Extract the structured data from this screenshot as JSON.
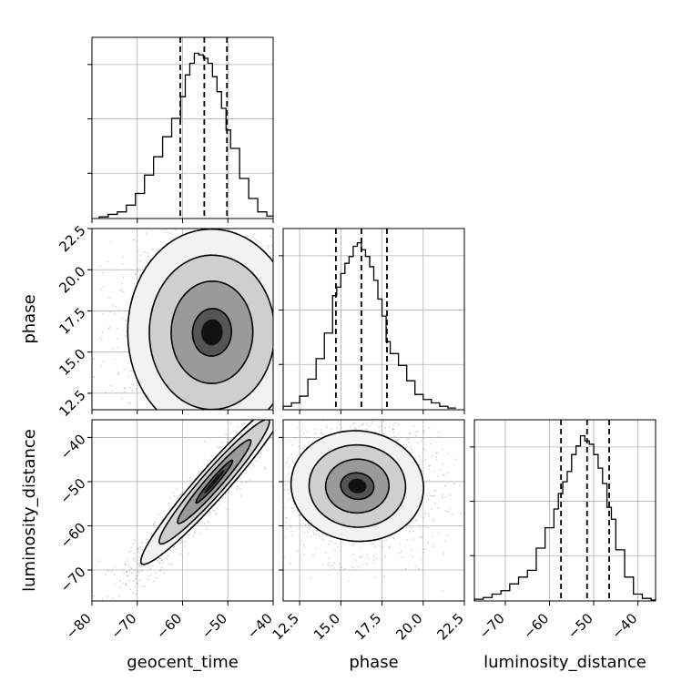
{
  "parameters": [
    "geocent_time",
    "phase",
    "luminosity_distance"
  ],
  "chart_data": {
    "type": "corner",
    "parameters": [
      {
        "name": "geocent_time",
        "axis_label": "geocent_time",
        "range": [
          -80,
          -40
        ],
        "ticks": [
          -80,
          -70,
          -60,
          -50,
          -40
        ],
        "tick_labels": [
          "−80",
          "−70",
          "−60",
          "−50",
          "−40"
        ],
        "quantiles": [
          -60.5,
          -55.2,
          -50.2
        ],
        "hist_bins": [
          -78.4,
          -76.4,
          -74.4,
          -72.4,
          -70.4,
          -68.4,
          -66.4,
          -64.4,
          -62.4,
          -60.4,
          -59.4,
          -58.4,
          -57.4,
          -56.4,
          -55.4,
          -54.4,
          -53.4,
          -52.4,
          -51.4,
          -50.4,
          -49.4,
          -47.4,
          -45.4,
          -43.4,
          -41.4,
          -40.0
        ],
        "hist_counts": [
          0.01,
          0.025,
          0.04,
          0.08,
          0.15,
          0.26,
          0.37,
          0.49,
          0.6,
          0.73,
          0.86,
          0.93,
          0.99,
          0.98,
          0.96,
          0.93,
          0.85,
          0.76,
          0.66,
          0.53,
          0.42,
          0.24,
          0.12,
          0.04,
          0.015
        ],
        "hist_max": 1.02
      },
      {
        "name": "phase",
        "axis_label": "phase",
        "range": [
          11.5,
          22.5
        ],
        "ticks": [
          12.5,
          15.0,
          17.5,
          20.0,
          22.5
        ],
        "tick_labels": [
          "12.5",
          "15.0",
          "17.5",
          "20.0",
          "22.5"
        ],
        "quantiles": [
          14.7,
          16.25,
          17.8
        ],
        "hist_bins": [
          11.5,
          12.0,
          12.5,
          13.0,
          13.5,
          14.0,
          14.5,
          14.75,
          15.0,
          15.25,
          15.5,
          15.75,
          16.0,
          16.25,
          16.5,
          16.75,
          17.0,
          17.25,
          17.5,
          17.75,
          18.0,
          18.5,
          19.0,
          19.5,
          20.0,
          20.5,
          21.0,
          21.5,
          22.0
        ],
        "hist_counts": [
          0.02,
          0.04,
          0.08,
          0.18,
          0.3,
          0.45,
          0.67,
          0.72,
          0.8,
          0.86,
          0.9,
          0.96,
          0.98,
          0.94,
          0.9,
          0.84,
          0.76,
          0.65,
          0.55,
          0.4,
          0.33,
          0.26,
          0.17,
          0.09,
          0.06,
          0.04,
          0.02,
          0.01
        ],
        "hist_max": 1.0
      },
      {
        "name": "luminosity_distance",
        "axis_label": "luminosity_distance",
        "range": [
          -77,
          -36
        ],
        "ticks": [
          -70,
          -60,
          -50,
          -40
        ],
        "tick_labels": [
          "−70",
          "−60",
          "−50",
          "−40"
        ],
        "quantiles": [
          -57.4,
          -51.5,
          -46.5
        ],
        "hist_bins": [
          -77.0,
          -75.0,
          -73.0,
          -71.0,
          -69.0,
          -67.0,
          -65.0,
          -63.0,
          -61.0,
          -59.0,
          -58.0,
          -57.0,
          -56.0,
          -55.0,
          -54.0,
          -53.0,
          -52.0,
          -51.0,
          -50.0,
          -49.0,
          -48.0,
          -47.0,
          -46.0,
          -45.0,
          -43.0,
          -41.0,
          -39.0,
          -37.0,
          -36.0
        ],
        "hist_counts": [
          0.01,
          0.02,
          0.04,
          0.06,
          0.1,
          0.14,
          0.18,
          0.31,
          0.43,
          0.54,
          0.63,
          0.7,
          0.76,
          0.86,
          0.91,
          0.97,
          0.94,
          0.92,
          0.86,
          0.78,
          0.69,
          0.55,
          0.48,
          0.3,
          0.14,
          0.04,
          0.015,
          0.005
        ],
        "hist_max": 1.0
      }
    ],
    "pairs": [
      {
        "x": "geocent_time",
        "y": "phase",
        "center": [
          -53.5,
          16.2
        ],
        "contour_levels": [
          {
            "a": [
              -3.5,
              0.8
            ],
            "b": [
              2.5,
              1.2
            ]
          },
          {
            "a": [
              -7.5,
              1.7
            ],
            "b": [
              5.0,
              2.6
            ]
          },
          {
            "a": [
              -11.5,
              2.6
            ],
            "b": [
              7.7,
              3.9
            ]
          },
          {
            "a": [
              -15.5,
              3.5
            ],
            "b": [
              10.3,
              5.2
            ]
          }
        ]
      },
      {
        "x": "geocent_time",
        "y": "luminosity_distance",
        "center": [
          -53.0,
          -50.0
        ],
        "contour_levels": [
          {
            "a": [
              4.0,
              4.8
            ],
            "b": [
              -0.6,
              0.5
            ]
          },
          {
            "a": [
              8.0,
              9.4
            ],
            "b": [
              -1.3,
              1.1
            ]
          },
          {
            "a": [
              12.0,
              14.0
            ],
            "b": [
              -2.0,
              1.7
            ]
          },
          {
            "a": [
              16.0,
              18.6
            ],
            "b": [
              -2.6,
              2.2
            ]
          }
        ]
      },
      {
        "x": "phase",
        "y": "luminosity_distance",
        "center": [
          16.0,
          -51.0
        ],
        "contour_levels": [
          {
            "a": [
              0.9,
              -1.5
            ],
            "b": [
              0.45,
              2.6
            ]
          },
          {
            "a": [
              1.7,
              -2.8
            ],
            "b": [
              0.9,
              5.4
            ]
          },
          {
            "a": [
              2.6,
              -4.4
            ],
            "b": [
              1.35,
              8.2
            ]
          },
          {
            "a": [
              3.6,
              -6.0
            ],
            "b": [
              1.8,
              11.0
            ]
          }
        ]
      }
    ],
    "grid": true,
    "quantile_lines": "dashed",
    "title": ""
  }
}
